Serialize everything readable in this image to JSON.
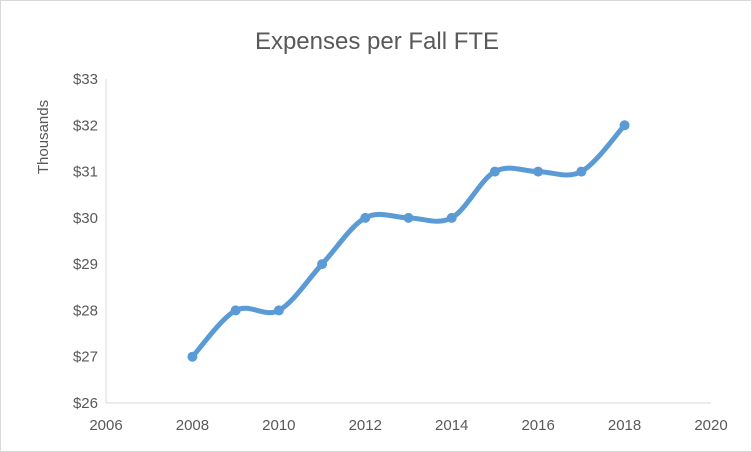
{
  "chart_data": {
    "type": "scatter",
    "title": "Expenses per Fall FTE",
    "ylabel": "Thousands",
    "xlabel": "",
    "x": [
      2008,
      2009,
      2010,
      2011,
      2012,
      2013,
      2014,
      2015,
      2016,
      2017,
      2018
    ],
    "y": [
      27,
      28,
      28,
      29,
      30,
      30,
      30,
      31,
      31,
      31,
      32
    ],
    "smooth_line": true,
    "xlim": [
      2006,
      2020
    ],
    "ylim": [
      26,
      33
    ],
    "x_ticks": [
      "2006",
      "2008",
      "2010",
      "2012",
      "2014",
      "2016",
      "2018",
      "2020"
    ],
    "y_ticks": [
      "$26",
      "$27",
      "$28",
      "$29",
      "$30",
      "$31",
      "$32",
      "$33"
    ],
    "grid": false,
    "legend": "none",
    "colors": {
      "series": "#5b9bd5",
      "axis": "#d9d9d9",
      "text": "#595959"
    }
  }
}
